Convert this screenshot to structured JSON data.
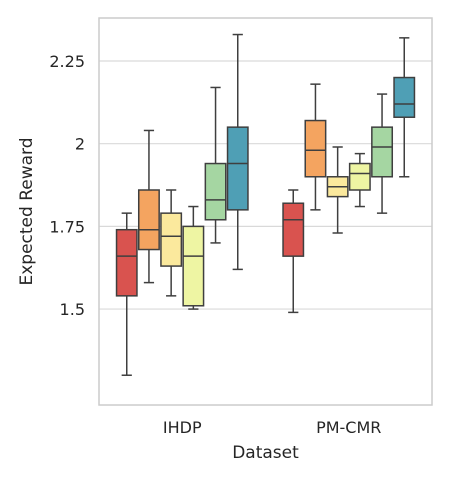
{
  "chart_data": {
    "type": "box",
    "xlabel": "Dataset",
    "ylabel": "Expected Reward",
    "ylim": [
      1.21,
      2.38
    ],
    "yticks": [
      1.5,
      1.75,
      2,
      2.25
    ],
    "ytick_labels": [
      "1.5",
      "1.75",
      "2",
      "2.25"
    ],
    "grid": "horizontal",
    "categories": [
      "IHDP",
      "PM-CMR"
    ],
    "box_colors": [
      "#d9534f",
      "#f4a460",
      "#fbe99d",
      "#eef5a3",
      "#a5d6a2",
      "#4f9fb5"
    ],
    "groups": [
      {
        "category": "IHDP",
        "boxes": [
          {
            "whisker_low": 1.3,
            "q1": 1.54,
            "median": 1.66,
            "q3": 1.74,
            "whisker_high": 1.79
          },
          {
            "whisker_low": 1.58,
            "q1": 1.68,
            "median": 1.74,
            "q3": 1.86,
            "whisker_high": 2.04
          },
          {
            "whisker_low": 1.54,
            "q1": 1.63,
            "median": 1.72,
            "q3": 1.79,
            "whisker_high": 1.86
          },
          {
            "whisker_low": 1.5,
            "q1": 1.51,
            "median": 1.66,
            "q3": 1.75,
            "whisker_high": 1.81
          },
          {
            "whisker_low": 1.7,
            "q1": 1.77,
            "median": 1.83,
            "q3": 1.94,
            "whisker_high": 2.17
          },
          {
            "whisker_low": 1.62,
            "q1": 1.8,
            "median": 1.94,
            "q3": 2.05,
            "whisker_high": 2.33
          }
        ]
      },
      {
        "category": "PM-CMR",
        "boxes": [
          {
            "whisker_low": 1.49,
            "q1": 1.66,
            "median": 1.77,
            "q3": 1.82,
            "whisker_high": 1.86
          },
          {
            "whisker_low": 1.8,
            "q1": 1.9,
            "median": 1.98,
            "q3": 2.07,
            "whisker_high": 2.18
          },
          {
            "whisker_low": 1.73,
            "q1": 1.84,
            "median": 1.87,
            "q3": 1.9,
            "whisker_high": 1.99
          },
          {
            "whisker_low": 1.81,
            "q1": 1.86,
            "median": 1.91,
            "q3": 1.94,
            "whisker_high": 1.97
          },
          {
            "whisker_low": 1.79,
            "q1": 1.9,
            "median": 1.99,
            "q3": 2.05,
            "whisker_high": 2.15
          },
          {
            "whisker_low": 1.9,
            "q1": 2.08,
            "median": 2.12,
            "q3": 2.2,
            "whisker_high": 2.32
          }
        ]
      }
    ]
  }
}
